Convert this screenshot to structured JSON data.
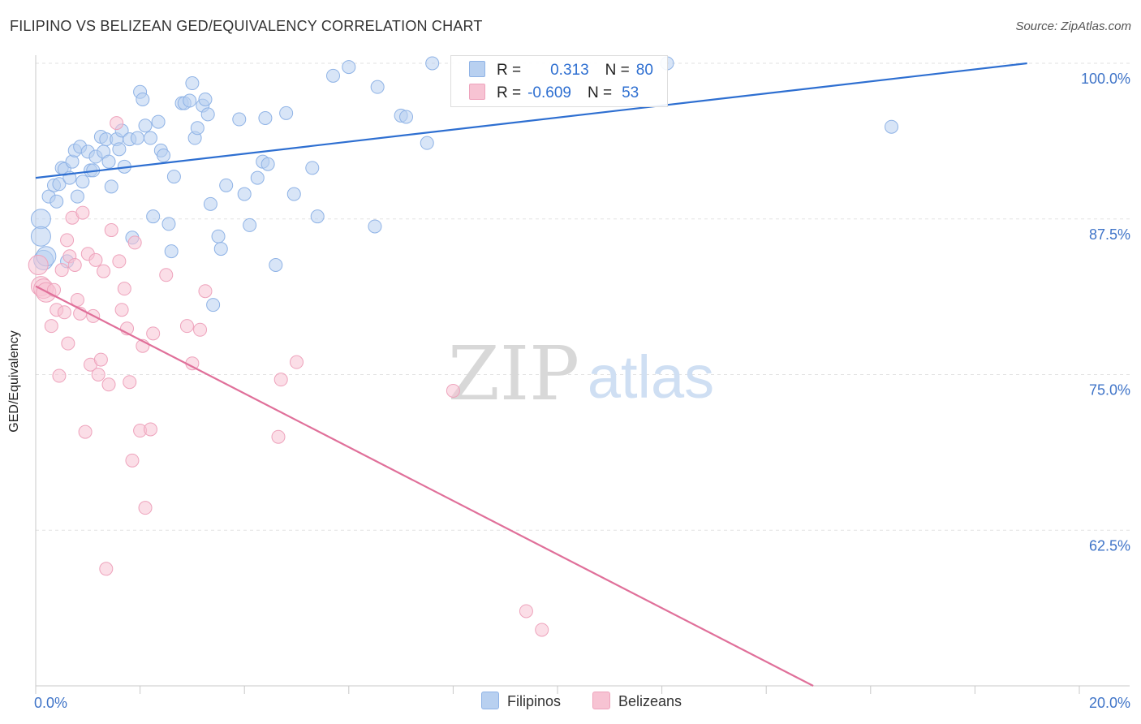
{
  "header": {
    "title": "FILIPINO VS BELIZEAN GED/EQUIVALENCY CORRELATION CHART",
    "source": "Source: ZipAtlas.com"
  },
  "colors": {
    "blue_fill": "#b8d0f0",
    "blue_stroke": "#8fb3e6",
    "blue_line": "#2e6fd1",
    "pink_fill": "#f7c3d3",
    "pink_stroke": "#eea3bc",
    "pink_line": "#e0709a",
    "tick_text": "#3f74c8"
  },
  "legend": {
    "filipinos": {
      "r_label": "R =",
      "r_value": "0.313",
      "n_label": "N =",
      "n_value": "80"
    },
    "belizeans": {
      "r_label": "R =",
      "r_value": "-0.609",
      "n_label": "N =",
      "n_value": "53"
    }
  },
  "bottom_legend": {
    "filipinos": "Filipinos",
    "belizeans": "Belizeans"
  },
  "watermark": {
    "zip": "ZIP",
    "atlas": "atlas"
  },
  "chart_data": {
    "type": "scatter",
    "title": "FILIPINO VS BELIZEAN GED/EQUIVALENCY CORRELATION CHART",
    "xlabel": "",
    "ylabel": "GED/Equivalency",
    "xlim": [
      0,
      20
    ],
    "ylim": [
      50,
      100
    ],
    "x_tick_labels": [
      "0.0%",
      "20.0%"
    ],
    "y_ticks": [
      62.5,
      75.0,
      87.5,
      100.0
    ],
    "y_tick_labels": [
      "62.5%",
      "75.0%",
      "87.5%",
      "100.0%"
    ],
    "grid": true,
    "legend_position": "top-center",
    "series": [
      {
        "name": "Filipinos",
        "color": "#b8d0f0",
        "trend": {
          "x": [
            0,
            19
          ],
          "y": [
            90.8,
            100
          ]
        },
        "points": [
          [
            0.1,
            87.5
          ],
          [
            0.1,
            86.1
          ],
          [
            0.25,
            89.3
          ],
          [
            0.35,
            90.2
          ],
          [
            0.4,
            88.9
          ],
          [
            0.45,
            90.3
          ],
          [
            0.5,
            91.6
          ],
          [
            0.55,
            91.5
          ],
          [
            0.65,
            90.8
          ],
          [
            0.7,
            92.1
          ],
          [
            0.75,
            93.0
          ],
          [
            0.8,
            89.3
          ],
          [
            0.85,
            93.3
          ],
          [
            0.9,
            90.5
          ],
          [
            1.0,
            92.9
          ],
          [
            1.05,
            91.4
          ],
          [
            1.1,
            91.4
          ],
          [
            1.15,
            92.5
          ],
          [
            1.25,
            94.1
          ],
          [
            1.3,
            92.9
          ],
          [
            1.35,
            93.9
          ],
          [
            1.4,
            92.1
          ],
          [
            1.45,
            90.1
          ],
          [
            1.55,
            93.9
          ],
          [
            1.6,
            93.1
          ],
          [
            1.65,
            94.6
          ],
          [
            1.7,
            91.7
          ],
          [
            1.8,
            93.9
          ],
          [
            1.85,
            86.0
          ],
          [
            1.95,
            94.0
          ],
          [
            2.0,
            97.7
          ],
          [
            2.05,
            97.1
          ],
          [
            2.1,
            95.0
          ],
          [
            2.2,
            94.0
          ],
          [
            2.25,
            87.7
          ],
          [
            2.35,
            95.3
          ],
          [
            2.4,
            93.0
          ],
          [
            2.45,
            92.6
          ],
          [
            2.55,
            87.1
          ],
          [
            2.6,
            84.9
          ],
          [
            2.65,
            90.9
          ],
          [
            2.8,
            96.8
          ],
          [
            2.85,
            96.8
          ],
          [
            2.95,
            97.0
          ],
          [
            3.0,
            98.4
          ],
          [
            3.05,
            94.0
          ],
          [
            3.1,
            94.8
          ],
          [
            3.2,
            96.6
          ],
          [
            3.25,
            97.1
          ],
          [
            3.3,
            95.9
          ],
          [
            3.35,
            88.7
          ],
          [
            3.4,
            80.6
          ],
          [
            3.5,
            86.1
          ],
          [
            3.55,
            85.1
          ],
          [
            3.65,
            90.2
          ],
          [
            3.9,
            95.5
          ],
          [
            4.0,
            89.5
          ],
          [
            4.1,
            87.0
          ],
          [
            4.25,
            90.8
          ],
          [
            4.35,
            92.1
          ],
          [
            4.4,
            95.6
          ],
          [
            4.45,
            91.9
          ],
          [
            4.6,
            83.8
          ],
          [
            4.8,
            96.0
          ],
          [
            4.95,
            89.5
          ],
          [
            5.3,
            91.6
          ],
          [
            5.4,
            87.7
          ],
          [
            5.7,
            99.0
          ],
          [
            6.0,
            99.7
          ],
          [
            6.5,
            86.9
          ],
          [
            6.55,
            98.1
          ],
          [
            7.0,
            95.8
          ],
          [
            7.1,
            95.7
          ],
          [
            7.5,
            93.6
          ],
          [
            7.6,
            100.0
          ],
          [
            12.1,
            100.0
          ],
          [
            16.4,
            94.9
          ],
          [
            0.15,
            84.2
          ],
          [
            0.6,
            84.1
          ],
          [
            0.2,
            84.5
          ]
        ]
      },
      {
        "name": "Belizeans",
        "color": "#f7c3d3",
        "trend": {
          "x": [
            0,
            14.9
          ],
          "y": [
            82.1,
            50.0
          ]
        },
        "points": [
          [
            0.05,
            83.8
          ],
          [
            0.1,
            82.1
          ],
          [
            0.15,
            81.9
          ],
          [
            0.2,
            81.6
          ],
          [
            0.3,
            78.9
          ],
          [
            0.35,
            81.8
          ],
          [
            0.4,
            80.2
          ],
          [
            0.45,
            74.9
          ],
          [
            0.5,
            83.4
          ],
          [
            0.55,
            80.0
          ],
          [
            0.6,
            85.8
          ],
          [
            0.62,
            77.5
          ],
          [
            0.65,
            84.5
          ],
          [
            0.7,
            87.6
          ],
          [
            0.75,
            83.8
          ],
          [
            0.8,
            81.0
          ],
          [
            0.85,
            79.9
          ],
          [
            0.9,
            88.0
          ],
          [
            0.95,
            70.4
          ],
          [
            1.0,
            84.7
          ],
          [
            1.05,
            75.8
          ],
          [
            1.1,
            79.7
          ],
          [
            1.15,
            84.2
          ],
          [
            1.2,
            75.0
          ],
          [
            1.25,
            76.2
          ],
          [
            1.3,
            83.3
          ],
          [
            1.35,
            59.4
          ],
          [
            1.4,
            74.2
          ],
          [
            1.45,
            86.6
          ],
          [
            1.55,
            95.2
          ],
          [
            1.6,
            84.1
          ],
          [
            1.65,
            80.2
          ],
          [
            1.7,
            81.9
          ],
          [
            1.75,
            78.7
          ],
          [
            1.8,
            74.4
          ],
          [
            1.85,
            68.1
          ],
          [
            1.9,
            85.6
          ],
          [
            2.0,
            70.5
          ],
          [
            2.05,
            77.3
          ],
          [
            2.1,
            64.3
          ],
          [
            2.2,
            70.6
          ],
          [
            2.25,
            78.3
          ],
          [
            2.5,
            83.0
          ],
          [
            2.9,
            78.9
          ],
          [
            3.0,
            75.9
          ],
          [
            3.15,
            78.6
          ],
          [
            3.25,
            81.7
          ],
          [
            4.65,
            70.0
          ],
          [
            4.7,
            74.6
          ],
          [
            5.0,
            76.0
          ],
          [
            8.0,
            73.7
          ],
          [
            9.4,
            56.0
          ],
          [
            9.7,
            54.5
          ]
        ]
      }
    ]
  }
}
